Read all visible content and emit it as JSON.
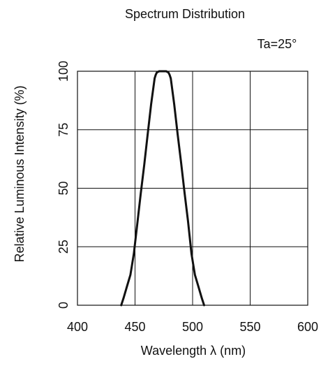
{
  "chart_data": {
    "type": "line",
    "title": "Spectrum Distribution",
    "annotation": "Ta=25°",
    "xlabel": "Wavelength λ (nm)",
    "ylabel": "Relative Luminous Intensity  (%)",
    "xlim": [
      400,
      600
    ],
    "ylim": [
      0,
      100
    ],
    "xticks": [
      "400",
      "450",
      "500",
      "550",
      "600"
    ],
    "yticks": [
      "0",
      "25",
      "50",
      "75",
      "100"
    ],
    "grid": true,
    "series": [
      {
        "color": "#111111",
        "x": [
          438,
          440,
          443,
          446,
          449,
          452,
          455,
          458,
          461,
          464,
          467,
          468,
          469,
          471,
          473,
          475,
          477,
          479,
          480,
          481,
          484,
          487,
          490,
          493,
          496,
          499,
          502,
          505,
          508,
          510
        ],
        "y": [
          0,
          3,
          8,
          13,
          22,
          35,
          48,
          60,
          73,
          86,
          97,
          98.5,
          99.5,
          100,
          100,
          100,
          100,
          99.5,
          98.5,
          97,
          86,
          73,
          61,
          48,
          36,
          22,
          13,
          8,
          3,
          0
        ]
      }
    ]
  }
}
